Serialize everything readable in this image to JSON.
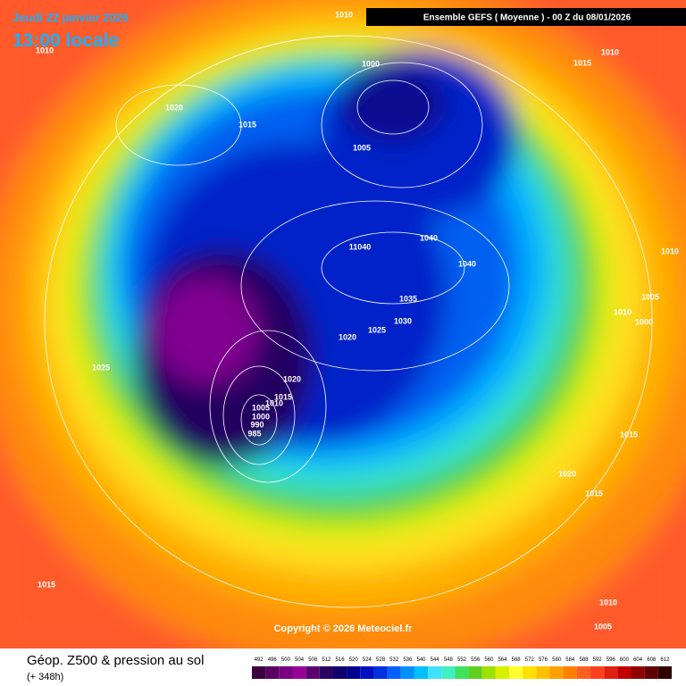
{
  "header": {
    "date": "Jeudi 22 janvier 2026",
    "time": "13:00 locale",
    "run": "Ensemble GEFS  ( Moyenne )  - 00 Z du 08/01/2026"
  },
  "map": {
    "copyright": "Copyright © 2026 Meteociel.fr",
    "isobar_labels": [
      1010,
      1010,
      1000,
      1015,
      1010,
      1020,
      1015,
      1005,
      1040,
      11040,
      1040,
      1010,
      1035,
      1005,
      1010,
      1000,
      1030,
      1025,
      1020,
      1025,
      1020,
      1015,
      1010,
      1005,
      1000,
      990,
      985,
      1015,
      1020,
      1015,
      1015,
      1010,
      1005
    ]
  },
  "footer": {
    "title": "Géop. Z500 & pression au sol",
    "lead": "(+ 348h)",
    "scale": {
      "labels": [
        492,
        496,
        500,
        504,
        508,
        512,
        516,
        520,
        524,
        528,
        532,
        536,
        540,
        544,
        548,
        552,
        556,
        560,
        564,
        568,
        572,
        576,
        580,
        584,
        588,
        592,
        596,
        600,
        604,
        608,
        612
      ],
      "colors": [
        "#3c0040",
        "#5a005f",
        "#7a0080",
        "#960096",
        "#5a0070",
        "#2a0060",
        "#10006e",
        "#000090",
        "#0010c0",
        "#0030e0",
        "#0060ff",
        "#0090ff",
        "#00c0ff",
        "#40e0ff",
        "#40f0c0",
        "#40e060",
        "#60d020",
        "#a0e000",
        "#d8f000",
        "#ffff30",
        "#ffe000",
        "#ffc000",
        "#ffa000",
        "#ff8000",
        "#ff6020",
        "#ff4020",
        "#e02010",
        "#c00000",
        "#900000",
        "#600000",
        "#300000"
      ]
    }
  }
}
